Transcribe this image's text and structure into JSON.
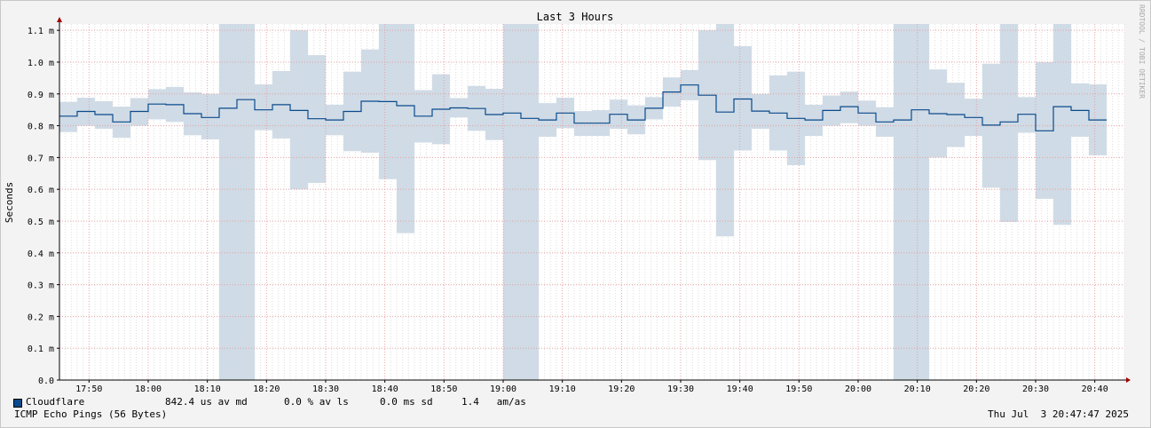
{
  "chart_data": {
    "type": "area",
    "title": "Last 3 Hours",
    "ylabel": "Seconds",
    "watermark": "RRDTOOL / TOBI OETIKER",
    "ylim": [
      0.0,
      1.12
    ],
    "y_ticks": [
      {
        "value": 0.0,
        "label": "0.0"
      },
      {
        "value": 0.1,
        "label": "0.1 m"
      },
      {
        "value": 0.2,
        "label": "0.2 m"
      },
      {
        "value": 0.3,
        "label": "0.3 m"
      },
      {
        "value": 0.4,
        "label": "0.4 m"
      },
      {
        "value": 0.5,
        "label": "0.5 m"
      },
      {
        "value": 0.6,
        "label": "0.6 m"
      },
      {
        "value": 0.7,
        "label": "0.7 m"
      },
      {
        "value": 0.8,
        "label": "0.8 m"
      },
      {
        "value": 0.9,
        "label": "0.9 m"
      },
      {
        "value": 1.0,
        "label": "1.0 m"
      },
      {
        "value": 1.1,
        "label": "1.1 m"
      }
    ],
    "x_range_minutes": [
      1065,
      1245
    ],
    "x_ticks": [
      {
        "minute": 1070,
        "label": "17:50"
      },
      {
        "minute": 1080,
        "label": "18:00"
      },
      {
        "minute": 1090,
        "label": "18:10"
      },
      {
        "minute": 1100,
        "label": "18:20"
      },
      {
        "minute": 1110,
        "label": "18:30"
      },
      {
        "minute": 1120,
        "label": "18:40"
      },
      {
        "minute": 1130,
        "label": "18:50"
      },
      {
        "minute": 1140,
        "label": "19:00"
      },
      {
        "minute": 1150,
        "label": "19:10"
      },
      {
        "minute": 1160,
        "label": "19:20"
      },
      {
        "minute": 1170,
        "label": "19:30"
      },
      {
        "minute": 1180,
        "label": "19:40"
      },
      {
        "minute": 1190,
        "label": "19:50"
      },
      {
        "minute": 1200,
        "label": "20:00"
      },
      {
        "minute": 1210,
        "label": "20:10"
      },
      {
        "minute": 1220,
        "label": "20:20"
      },
      {
        "minute": 1230,
        "label": "20:30"
      },
      {
        "minute": 1240,
        "label": "20:40"
      }
    ],
    "step_minutes": 3,
    "series": [
      {
        "name": "Cloudflare",
        "color": "#0b4a8c",
        "band_color": "#cfdbe6",
        "segments": [
          {
            "start": 1065,
            "median": 0.83,
            "low": 0.78,
            "high": 0.875
          },
          {
            "start": 1068,
            "median": 0.845,
            "low": 0.8,
            "high": 0.888
          },
          {
            "start": 1071,
            "median": 0.835,
            "low": 0.79,
            "high": 0.877
          },
          {
            "start": 1074,
            "median": 0.812,
            "low": 0.762,
            "high": 0.86
          },
          {
            "start": 1077,
            "median": 0.845,
            "low": 0.8,
            "high": 0.887
          },
          {
            "start": 1080,
            "median": 0.868,
            "low": 0.82,
            "high": 0.915
          },
          {
            "start": 1083,
            "median": 0.866,
            "low": 0.812,
            "high": 0.922
          },
          {
            "start": 1086,
            "median": 0.838,
            "low": 0.77,
            "high": 0.905
          },
          {
            "start": 1089,
            "median": 0.826,
            "low": 0.757,
            "high": 0.9
          },
          {
            "start": 1092,
            "median": 0.855,
            "low": 0.0,
            "high": 1.12
          },
          {
            "start": 1095,
            "median": 0.882,
            "low": 0.0,
            "high": 1.12
          },
          {
            "start": 1098,
            "median": 0.85,
            "low": 0.786,
            "high": 0.93
          },
          {
            "start": 1101,
            "median": 0.866,
            "low": 0.76,
            "high": 0.972
          },
          {
            "start": 1104,
            "median": 0.848,
            "low": 0.6,
            "high": 1.1
          },
          {
            "start": 1107,
            "median": 0.822,
            "low": 0.62,
            "high": 1.022
          },
          {
            "start": 1110,
            "median": 0.818,
            "low": 0.77,
            "high": 0.866
          },
          {
            "start": 1113,
            "median": 0.845,
            "low": 0.72,
            "high": 0.97
          },
          {
            "start": 1116,
            "median": 0.877,
            "low": 0.715,
            "high": 1.04
          },
          {
            "start": 1119,
            "median": 0.876,
            "low": 0.632,
            "high": 1.12
          },
          {
            "start": 1122,
            "median": 0.863,
            "low": 0.462,
            "high": 1.12
          },
          {
            "start": 1125,
            "median": 0.83,
            "low": 0.747,
            "high": 0.912
          },
          {
            "start": 1128,
            "median": 0.852,
            "low": 0.742,
            "high": 0.962
          },
          {
            "start": 1131,
            "median": 0.856,
            "low": 0.826,
            "high": 0.887
          },
          {
            "start": 1134,
            "median": 0.854,
            "low": 0.784,
            "high": 0.925
          },
          {
            "start": 1137,
            "median": 0.835,
            "low": 0.755,
            "high": 0.916
          },
          {
            "start": 1140,
            "median": 0.84,
            "low": 0.0,
            "high": 1.12
          },
          {
            "start": 1143,
            "median": 0.823,
            "low": 0.0,
            "high": 1.12
          },
          {
            "start": 1146,
            "median": 0.818,
            "low": 0.765,
            "high": 0.871
          },
          {
            "start": 1149,
            "median": 0.84,
            "low": 0.792,
            "high": 0.888
          },
          {
            "start": 1152,
            "median": 0.808,
            "low": 0.768,
            "high": 0.846
          },
          {
            "start": 1155,
            "median": 0.808,
            "low": 0.768,
            "high": 0.849
          },
          {
            "start": 1158,
            "median": 0.836,
            "low": 0.79,
            "high": 0.882
          },
          {
            "start": 1161,
            "median": 0.818,
            "low": 0.773,
            "high": 0.864
          },
          {
            "start": 1164,
            "median": 0.855,
            "low": 0.82,
            "high": 0.89
          },
          {
            "start": 1167,
            "median": 0.906,
            "low": 0.86,
            "high": 0.952
          },
          {
            "start": 1170,
            "median": 0.928,
            "low": 0.88,
            "high": 0.975
          },
          {
            "start": 1173,
            "median": 0.896,
            "low": 0.692,
            "high": 1.1
          },
          {
            "start": 1176,
            "median": 0.843,
            "low": 0.452,
            "high": 1.12
          },
          {
            "start": 1179,
            "median": 0.884,
            "low": 0.722,
            "high": 1.05
          },
          {
            "start": 1182,
            "median": 0.846,
            "low": 0.79,
            "high": 0.9
          },
          {
            "start": 1185,
            "median": 0.84,
            "low": 0.722,
            "high": 0.958
          },
          {
            "start": 1188,
            "median": 0.823,
            "low": 0.676,
            "high": 0.97
          },
          {
            "start": 1191,
            "median": 0.818,
            "low": 0.768,
            "high": 0.866
          },
          {
            "start": 1194,
            "median": 0.848,
            "low": 0.8,
            "high": 0.895
          },
          {
            "start": 1197,
            "median": 0.86,
            "low": 0.808,
            "high": 0.907
          },
          {
            "start": 1200,
            "median": 0.84,
            "low": 0.8,
            "high": 0.879
          },
          {
            "start": 1203,
            "median": 0.812,
            "low": 0.765,
            "high": 0.858
          },
          {
            "start": 1206,
            "median": 0.818,
            "low": 0.0,
            "high": 1.12
          },
          {
            "start": 1209,
            "median": 0.85,
            "low": 0.0,
            "high": 1.12
          },
          {
            "start": 1212,
            "median": 0.838,
            "low": 0.7,
            "high": 0.977
          },
          {
            "start": 1215,
            "median": 0.835,
            "low": 0.733,
            "high": 0.935
          },
          {
            "start": 1218,
            "median": 0.826,
            "low": 0.768,
            "high": 0.885
          },
          {
            "start": 1221,
            "median": 0.802,
            "low": 0.605,
            "high": 0.995
          },
          {
            "start": 1224,
            "median": 0.812,
            "low": 0.497,
            "high": 1.12
          },
          {
            "start": 1227,
            "median": 0.836,
            "low": 0.778,
            "high": 0.89
          },
          {
            "start": 1230,
            "median": 0.784,
            "low": 0.57,
            "high": 1.0
          },
          {
            "start": 1233,
            "median": 0.86,
            "low": 0.488,
            "high": 1.12
          },
          {
            "start": 1236,
            "median": 0.848,
            "low": 0.765,
            "high": 0.933
          },
          {
            "start": 1239,
            "median": 0.818,
            "low": 0.707,
            "high": 0.93
          }
        ]
      }
    ]
  },
  "legend": {
    "name": "Cloudflare",
    "median": "842.4 us av md",
    "loss": "0.0 % av ls",
    "sd": "0.0 ms sd",
    "amas": "1.4   am/as"
  },
  "footer": {
    "probe": "ICMP Echo Pings (56 Bytes)",
    "timestamp": "Thu Jul  3 20:47:47 2025"
  }
}
